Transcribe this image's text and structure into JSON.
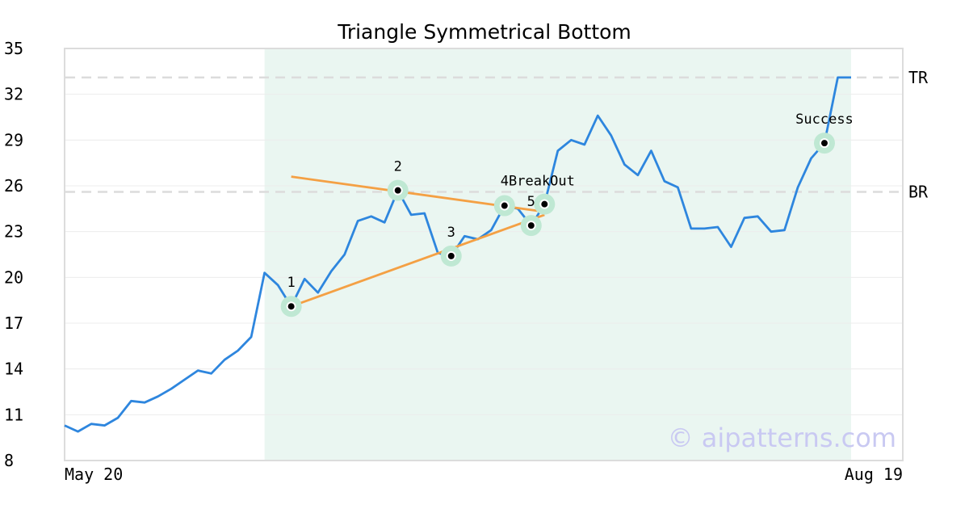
{
  "chart_data": {
    "type": "line",
    "title": "Triangle Symmetrical Bottom",
    "x_tick_labels": [
      "May 20",
      "Aug 19"
    ],
    "y_ticks": [
      8,
      11,
      14,
      17,
      20,
      23,
      26,
      29,
      32,
      35
    ],
    "ylim": [
      8,
      35
    ],
    "grid": "horizontal",
    "series": [
      {
        "color": "#2e86de",
        "values": [
          10.3,
          9.9,
          10.4,
          10.3,
          10.8,
          11.9,
          11.8,
          12.2,
          12.7,
          13.3,
          13.9,
          13.7,
          14.6,
          15.2,
          16.1,
          20.3,
          19.5,
          18.1,
          19.9,
          19.0,
          20.4,
          21.5,
          23.7,
          24.0,
          23.6,
          25.7,
          24.1,
          24.2,
          21.6,
          21.4,
          22.7,
          22.5,
          23.1,
          24.7,
          24.5,
          23.4,
          24.8,
          28.3,
          29.0,
          28.7,
          30.6,
          29.3,
          27.4,
          26.7,
          28.3,
          26.3,
          25.9,
          23.2,
          23.2,
          23.3,
          22.0,
          23.9,
          24.0,
          23.0,
          23.1,
          25.9,
          27.8,
          28.8,
          33.1,
          33.1
        ]
      }
    ],
    "shaded_region": {
      "from_index": 15,
      "to_index": 59,
      "color": "#eaf6f1"
    },
    "reference_lines": [
      {
        "label": "TR",
        "value": 33.1
      },
      {
        "label": "BR",
        "value": 25.6
      }
    ],
    "trendlines": [
      {
        "color": "#f4a044",
        "from": {
          "index": 17,
          "value": 26.6
        },
        "to": {
          "index": 36,
          "value": 24.3
        }
      },
      {
        "color": "#f4a044",
        "from": {
          "index": 17,
          "value": 18.1
        },
        "to": {
          "index": 36,
          "value": 24.1
        }
      }
    ],
    "points": [
      {
        "label": "1",
        "index": 17,
        "value": 18.1
      },
      {
        "label": "2",
        "index": 25,
        "value": 25.7
      },
      {
        "label": "3",
        "index": 29,
        "value": 21.4
      },
      {
        "label": "4",
        "index": 33,
        "value": 24.7
      },
      {
        "label": "5",
        "index": 35,
        "value": 23.4
      },
      {
        "label": "BreakOut",
        "index": 36,
        "value": 24.8
      },
      {
        "label": "Success",
        "index": 57,
        "value": 28.8
      }
    ],
    "watermark": "© aipatterns.com"
  }
}
